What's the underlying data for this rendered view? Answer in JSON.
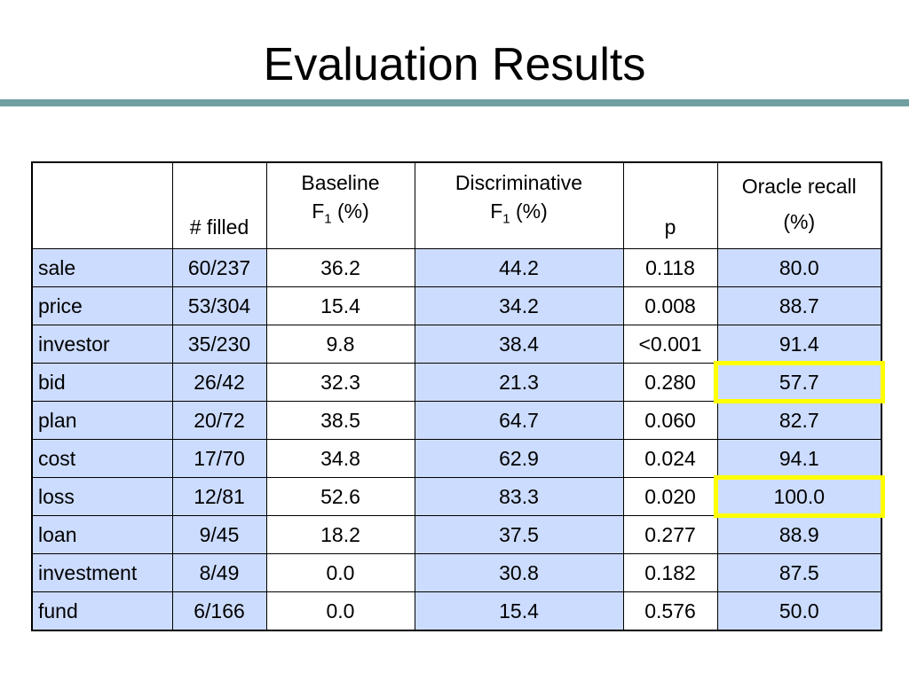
{
  "title": "Evaluation Results",
  "table": {
    "headers": {
      "filled": "# filled",
      "baseline_line1": "Baseline",
      "baseline_f": "F",
      "baseline_sub": "1",
      "baseline_unit": " (%)",
      "disc_line1": "Discriminative",
      "disc_f": "F",
      "disc_sub": "1",
      "disc_unit": " (%)",
      "p": "p",
      "oracle_line1": "Oracle recall",
      "oracle_line2": "(%)"
    },
    "rows": [
      {
        "name": "sale",
        "filled": "60/237",
        "baseline": "36.2",
        "disc": "44.2",
        "p": "0.118",
        "oracle": "80.0",
        "highlight": false
      },
      {
        "name": "price",
        "filled": "53/304",
        "baseline": "15.4",
        "disc": "34.2",
        "p": "0.008",
        "oracle": "88.7",
        "highlight": false
      },
      {
        "name": "investor",
        "filled": "35/230",
        "baseline": "9.8",
        "disc": "38.4",
        "p": "<0.001",
        "oracle": "91.4",
        "highlight": false
      },
      {
        "name": "bid",
        "filled": "26/42",
        "baseline": "32.3",
        "disc": "21.3",
        "p": "0.280",
        "oracle": "57.7",
        "highlight": true
      },
      {
        "name": "plan",
        "filled": "20/72",
        "baseline": "38.5",
        "disc": "64.7",
        "p": "0.060",
        "oracle": "82.7",
        "highlight": false
      },
      {
        "name": "cost",
        "filled": "17/70",
        "baseline": "34.8",
        "disc": "62.9",
        "p": "0.024",
        "oracle": "94.1",
        "highlight": false
      },
      {
        "name": "loss",
        "filled": "12/81",
        "baseline": "52.6",
        "disc": "83.3",
        "p": "0.020",
        "oracle": "100.0",
        "highlight": true
      },
      {
        "name": "loan",
        "filled": "9/45",
        "baseline": "18.2",
        "disc": "37.5",
        "p": "0.277",
        "oracle": "88.9",
        "highlight": false
      },
      {
        "name": "investment",
        "filled": "8/49",
        "baseline": "0.0",
        "disc": "30.8",
        "p": "0.182",
        "oracle": "87.5",
        "highlight": false
      },
      {
        "name": "fund",
        "filled": "6/166",
        "baseline": "0.0",
        "disc": "15.4",
        "p": "0.576",
        "oracle": "50.0",
        "highlight": false
      }
    ]
  },
  "colors": {
    "accent_rule": "#6f9fa0",
    "row_fill": "#ccdcff",
    "highlight_border": "#ffff00"
  }
}
